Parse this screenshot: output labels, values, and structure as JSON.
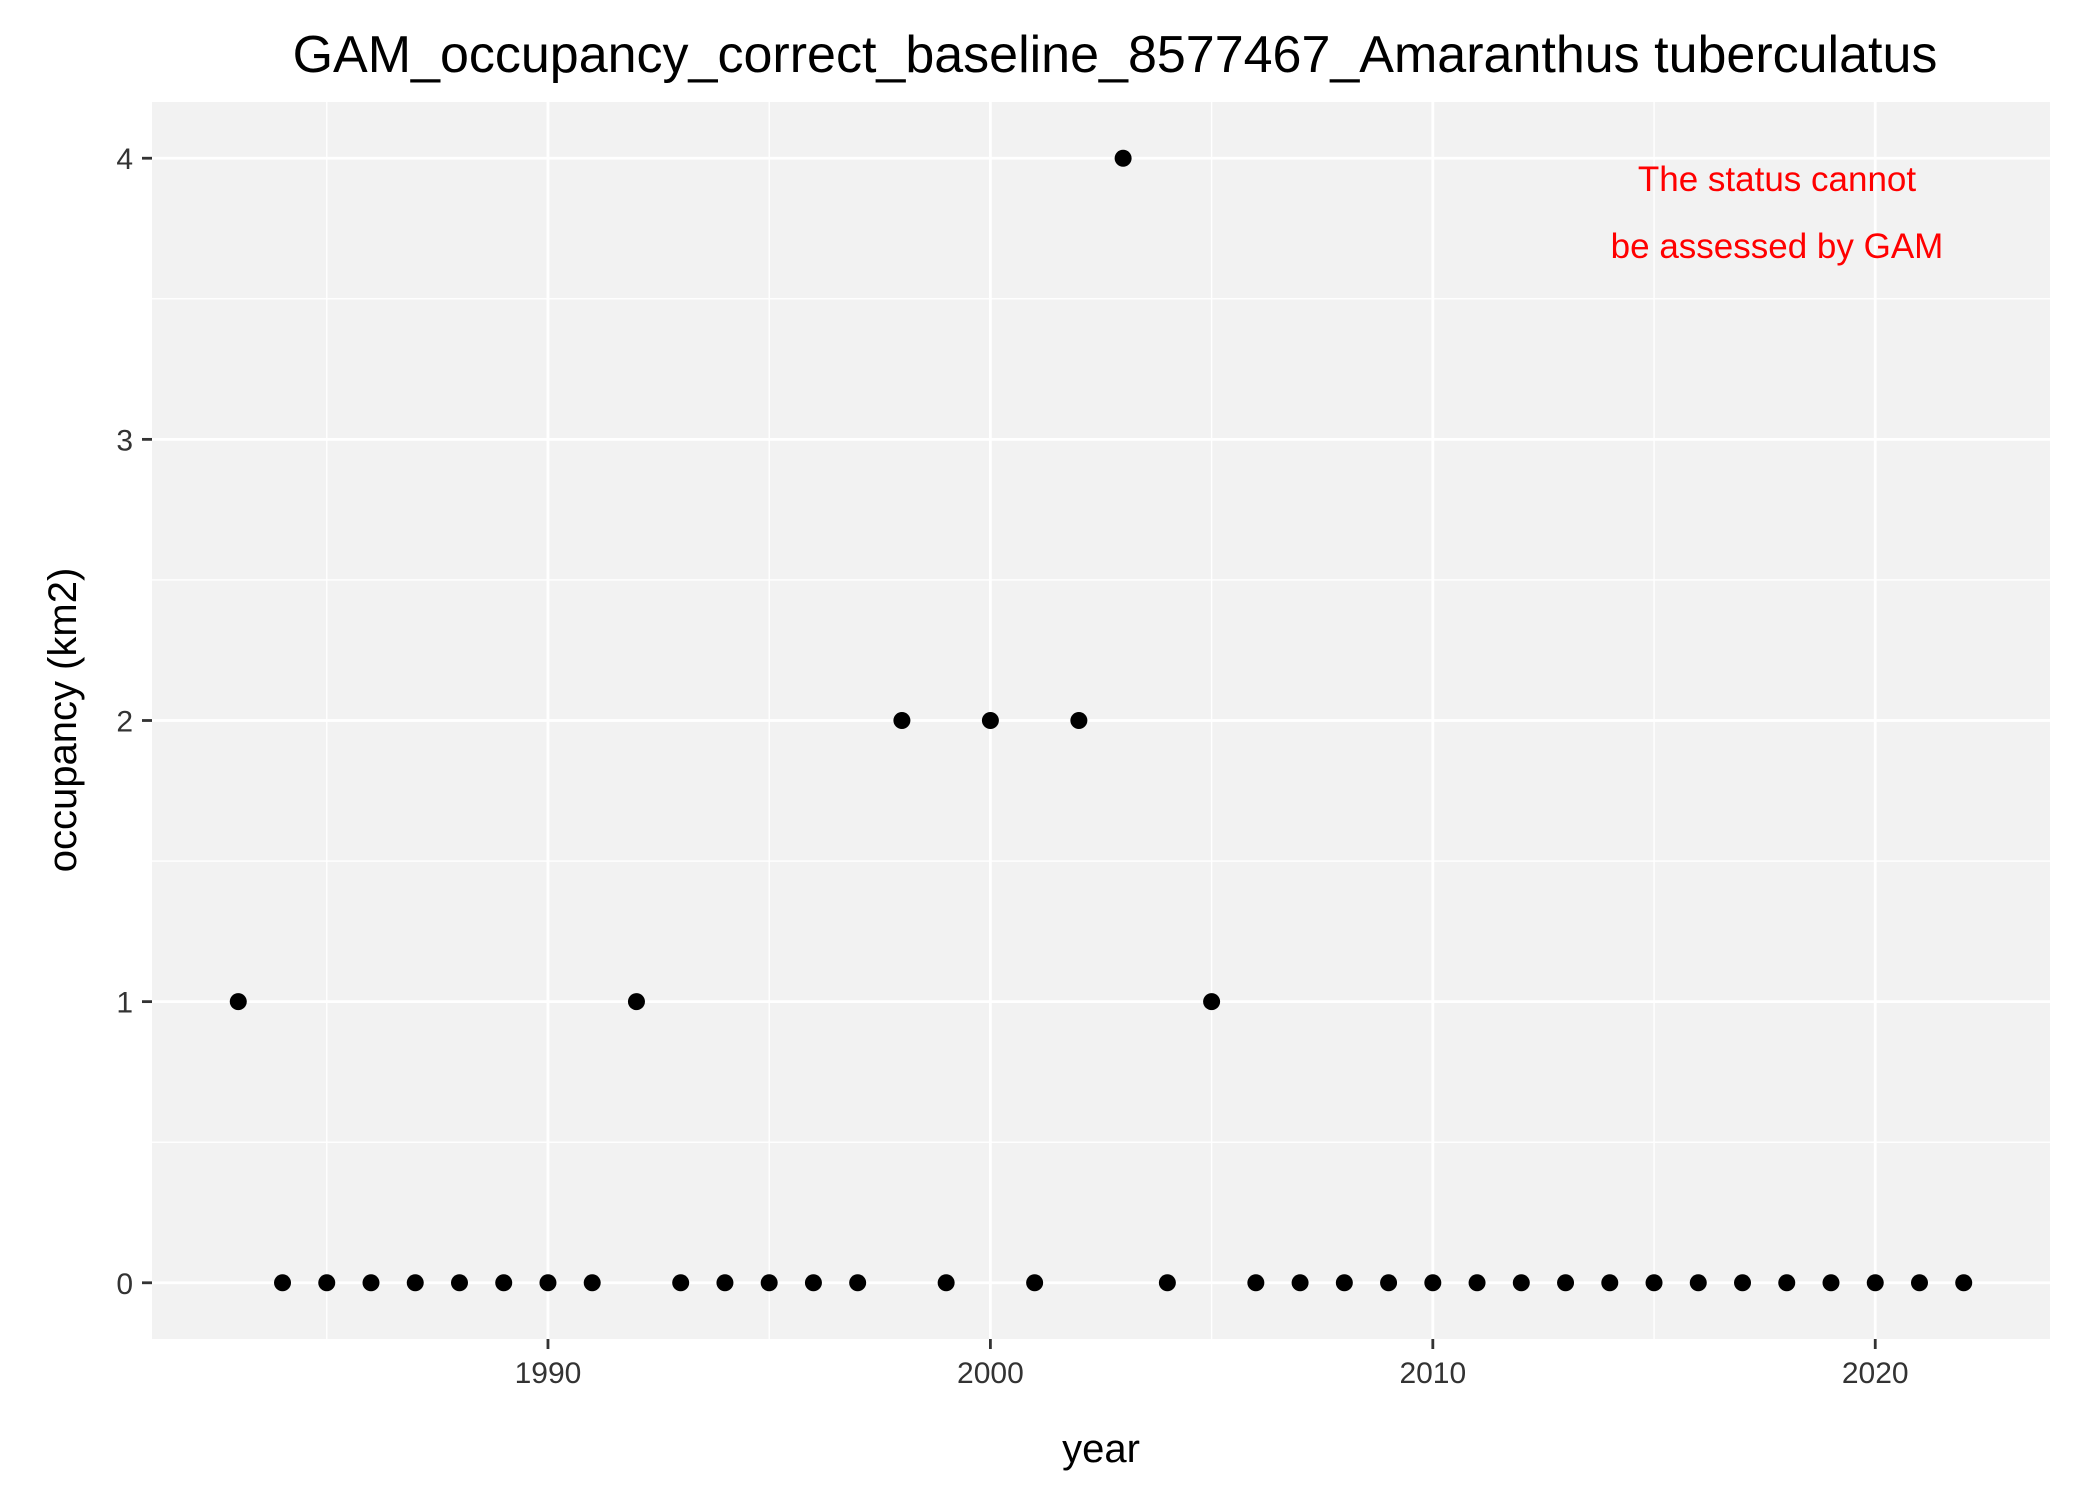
{
  "chart_data": {
    "type": "scatter",
    "title": "GAM_occupancy_correct_baseline_8577467_Amaranthus tuberculatus",
    "xlabel": "year",
    "ylabel": "occupancy (km2)",
    "xlim": [
      1981.05,
      2023.95
    ],
    "ylim": [
      -0.2,
      4.2
    ],
    "x_ticks": [
      1990,
      2000,
      2010,
      2020
    ],
    "y_ticks": [
      0,
      1,
      2,
      3,
      4
    ],
    "grid": true,
    "panel_background": "#F2F2F2",
    "grid_color": "#FFFFFF",
    "point_color": "#000000",
    "x": [
      1983,
      1984,
      1985,
      1986,
      1987,
      1988,
      1989,
      1990,
      1991,
      1992,
      1993,
      1994,
      1995,
      1996,
      1997,
      1998,
      1999,
      2000,
      2001,
      2002,
      2003,
      2004,
      2005,
      2006,
      2007,
      2008,
      2009,
      2010,
      2011,
      2012,
      2013,
      2014,
      2015,
      2016,
      2017,
      2018,
      2019,
      2020,
      2021,
      2022
    ],
    "y": [
      1,
      0,
      0,
      0,
      0,
      0,
      0,
      0,
      0,
      1,
      0,
      0,
      0,
      0,
      0,
      2,
      0,
      2,
      0,
      2,
      4,
      0,
      1,
      0,
      0,
      0,
      0,
      0,
      0,
      0,
      0,
      0,
      0,
      0,
      0,
      0,
      0,
      0,
      0,
      0
    ],
    "annotation": {
      "lines": [
        "The status cannot",
        "be assessed by GAM"
      ],
      "color": "#FF0000",
      "placement": "top-right"
    }
  }
}
